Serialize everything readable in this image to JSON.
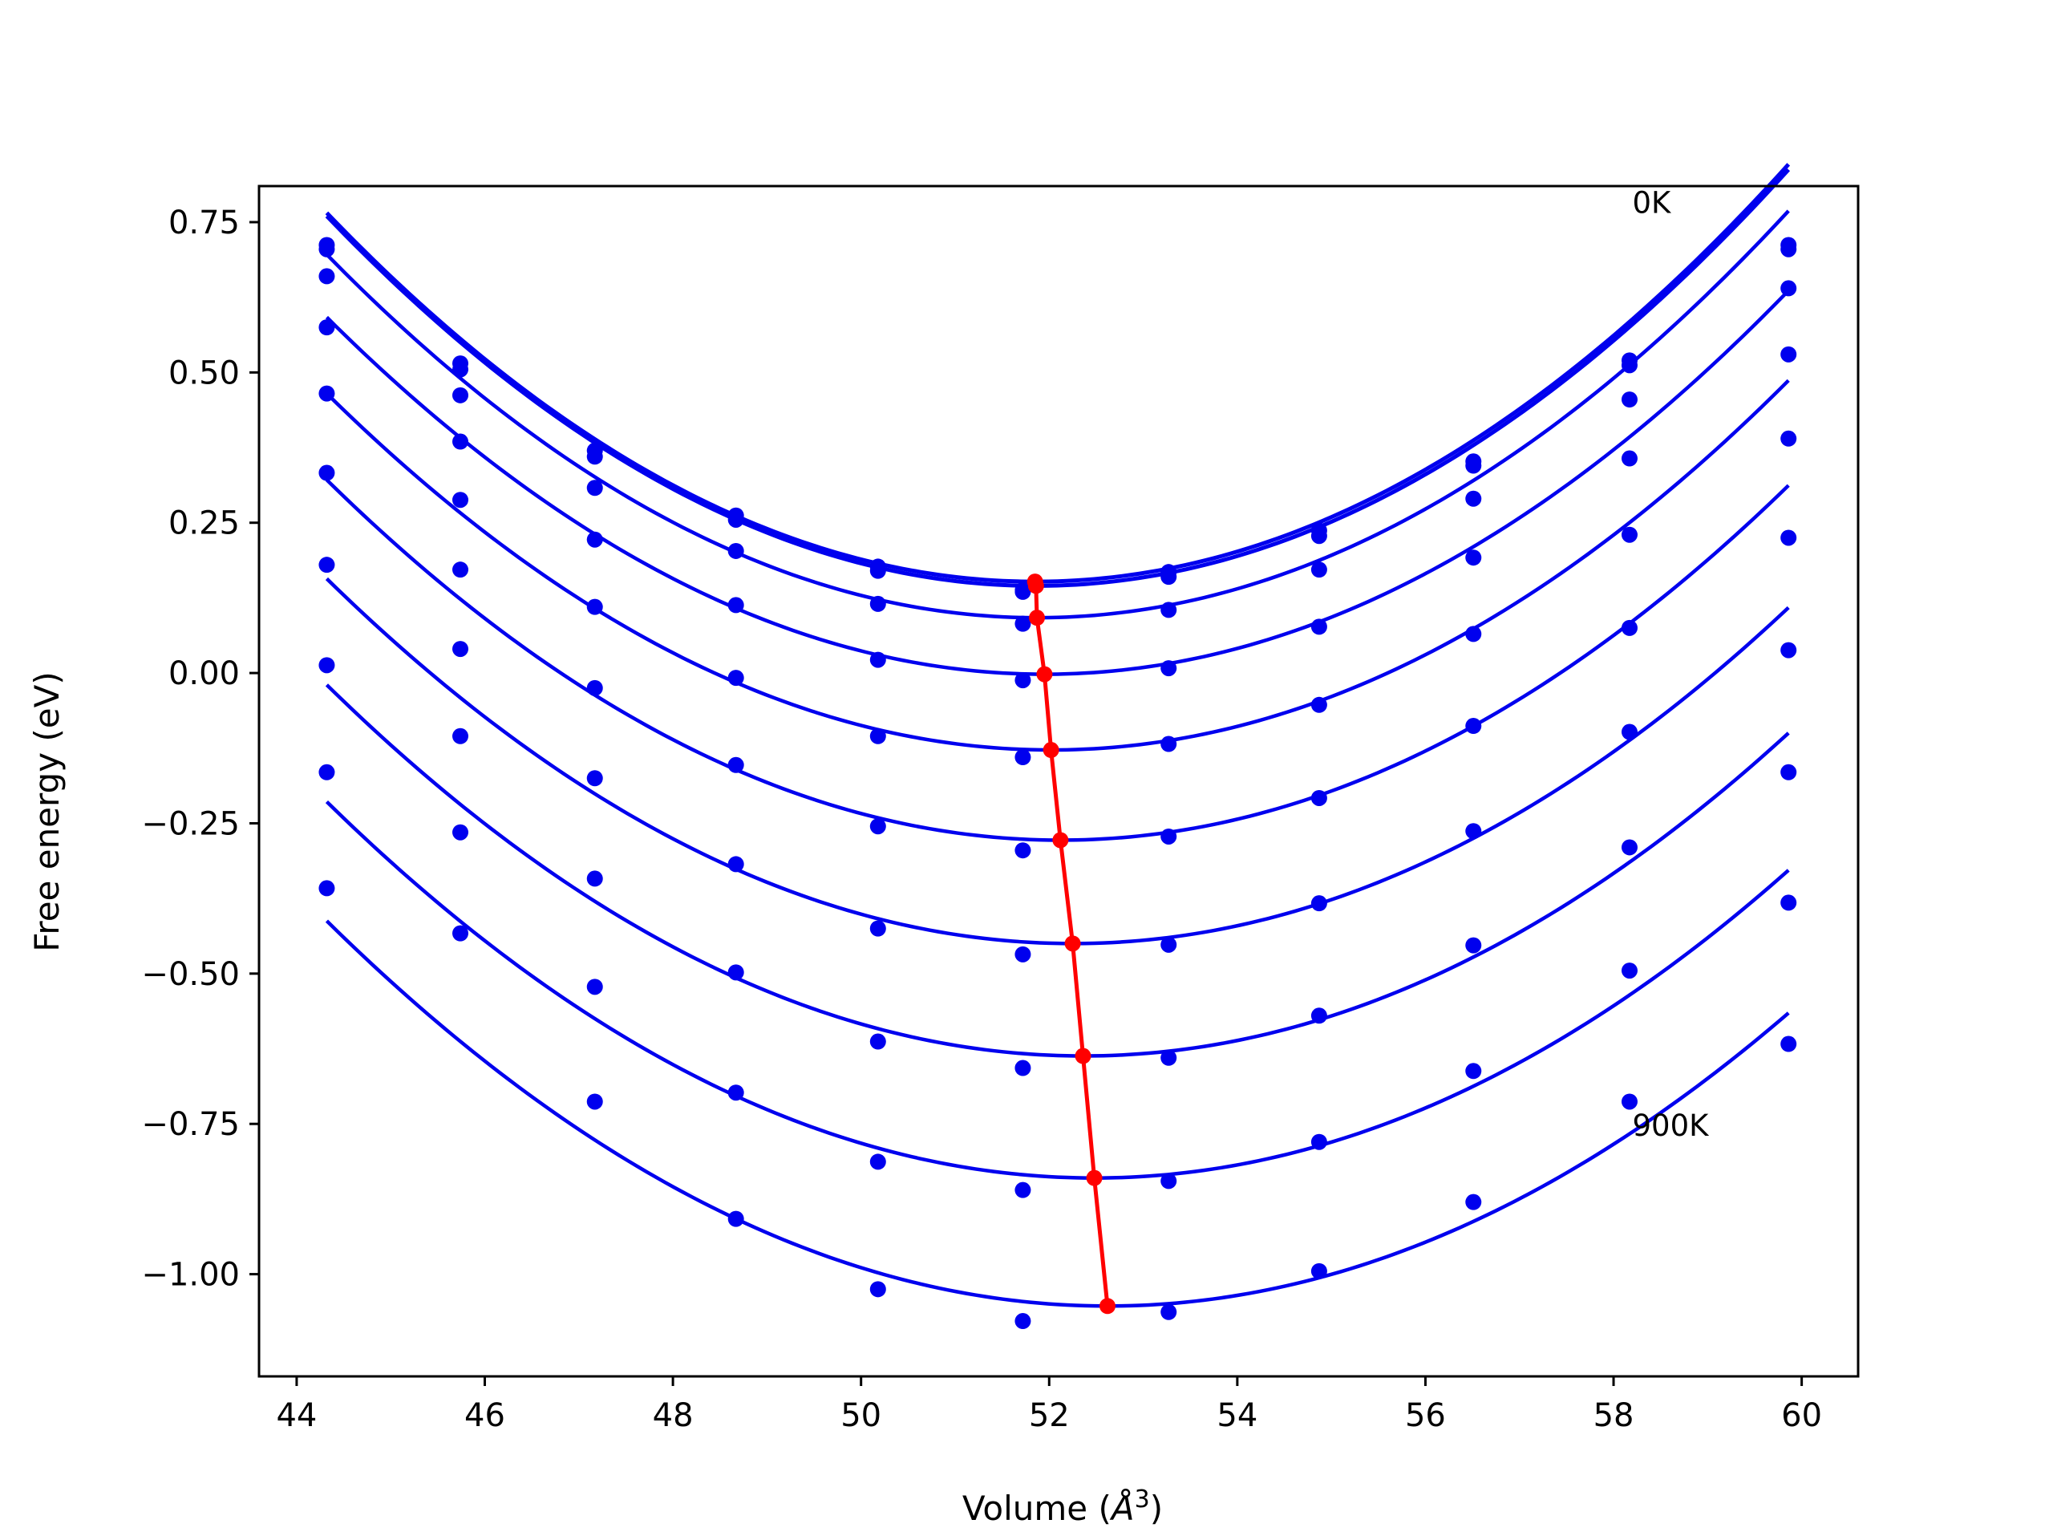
{
  "chart_data": {
    "type": "scatter",
    "title": "",
    "xlabel": "Volume (Å³)",
    "xlabel_parts": {
      "text": "Volume (",
      "symbol": "Å",
      "sup": "3",
      "close": ")"
    },
    "ylabel": "Free energy (eV)",
    "xlim": [
      43.6,
      60.6
    ],
    "ylim": [
      -1.17,
      0.81
    ],
    "grid": false,
    "legend": "none",
    "x_ticks": [
      44,
      46,
      48,
      50,
      52,
      54,
      56,
      58,
      60
    ],
    "x_tick_labels": [
      "44",
      "46",
      "48",
      "50",
      "52",
      "54",
      "56",
      "58",
      "60"
    ],
    "y_ticks": [
      0.75,
      0.5,
      0.25,
      0.0,
      -0.25,
      -0.5,
      -0.75,
      -1.0
    ],
    "y_tick_labels": [
      "0.75",
      "0.50",
      "0.25",
      "0.00",
      "−0.25",
      "−0.50",
      "−0.75",
      "−1.00"
    ],
    "annotations": [
      {
        "text": "0K",
        "x": 58.2,
        "y": 0.765
      },
      {
        "text": "900K",
        "x": 58.2,
        "y": -0.77
      }
    ],
    "volumes": [
      44.32,
      45.74,
      47.17,
      48.67,
      50.18,
      51.72,
      53.27,
      54.87,
      56.51,
      58.17,
      59.86
    ],
    "fit_range": [
      44.32,
      59.86
    ],
    "series": [
      {
        "temperature_K": 0,
        "color": "#0000ee",
        "fit_line_width": 5,
        "points": [
          0.712,
          0.515,
          0.37,
          0.262,
          0.177,
          0.138,
          0.168,
          0.237,
          0.352,
          0.52,
          0.712
        ],
        "fit": {
          "a": 0.01082,
          "v0": 51.85,
          "e0": 0.152
        }
      },
      {
        "temperature_K": 100,
        "color": "#0000ee",
        "fit_line_width": 5,
        "points": [
          0.705,
          0.505,
          0.36,
          0.255,
          0.17,
          0.135,
          0.16,
          0.228,
          0.345,
          0.512,
          0.705
        ],
        "fit": {
          "a": 0.01082,
          "v0": 51.86,
          "e0": 0.145
        }
      },
      {
        "temperature_K": 200,
        "color": "#0000ee",
        "fit_line_width": 4.5,
        "points": [
          0.66,
          0.462,
          0.308,
          0.203,
          0.115,
          0.082,
          0.105,
          0.172,
          0.29,
          0.455,
          0.64
        ],
        "fit": {
          "a": 0.0106,
          "v0": 51.87,
          "e0": 0.092
        }
      },
      {
        "temperature_K": 300,
        "color": "#0000ee",
        "fit_line_width": 4.5,
        "points": [
          0.575,
          0.385,
          0.222,
          0.113,
          0.022,
          -0.012,
          0.008,
          0.077,
          0.192,
          0.357,
          0.53
        ],
        "fit": {
          "a": 0.0102,
          "v0": 51.95,
          "e0": -0.002
        }
      },
      {
        "temperature_K": 400,
        "color": "#0000ee",
        "fit_line_width": 4.5,
        "points": [
          0.465,
          0.288,
          0.11,
          -0.008,
          -0.105,
          -0.14,
          -0.118,
          -0.053,
          0.065,
          0.23,
          0.39
        ],
        "fit": {
          "a": 0.01,
          "v0": 52.02,
          "e0": -0.128
        }
      },
      {
        "temperature_K": 500,
        "color": "#0000ee",
        "fit_line_width": 4.5,
        "points": [
          0.333,
          0.172,
          -0.025,
          -0.153,
          -0.255,
          -0.295,
          -0.272,
          -0.208,
          -0.088,
          0.075,
          0.225
        ],
        "fit": {
          "a": 0.00985,
          "v0": 52.12,
          "e0": -0.278
        }
      },
      {
        "temperature_K": 600,
        "color": "#0000ee",
        "fit_line_width": 4.5,
        "points": [
          0.18,
          0.04,
          -0.175,
          -0.318,
          -0.425,
          -0.468,
          -0.452,
          -0.383,
          -0.263,
          -0.098,
          0.038
        ],
        "fit": {
          "a": 0.00965,
          "v0": 52.25,
          "e0": -0.45
        }
      },
      {
        "temperature_K": 700,
        "color": "#0000ee",
        "fit_line_width": 4.5,
        "points": [
          0.013,
          -0.105,
          -0.342,
          -0.498,
          -0.613,
          -0.657,
          -0.64,
          -0.57,
          -0.453,
          -0.29,
          -0.165
        ],
        "fit": {
          "a": 0.00955,
          "v0": 52.36,
          "e0": -0.637
        }
      },
      {
        "temperature_K": 800,
        "color": "#0000ee",
        "fit_line_width": 4.5,
        "points": [
          -0.165,
          -0.265,
          -0.522,
          -0.698,
          -0.813,
          -0.86,
          -0.845,
          -0.78,
          -0.662,
          -0.495,
          -0.382
        ],
        "fit": {
          "a": 0.0094,
          "v0": 52.48,
          "e0": -0.84
        }
      },
      {
        "temperature_K": 900,
        "color": "#0000ee",
        "fit_line_width": 4.5,
        "points": [
          -0.358,
          -0.433,
          -0.713,
          -0.908,
          -1.025,
          -1.078,
          -1.063,
          -0.995,
          -0.88,
          -0.713,
          -0.617
        ],
        "fit": {
          "a": 0.0093,
          "v0": 52.62,
          "e0": -1.053
        }
      }
    ],
    "minima_line": {
      "color": "#ff0000",
      "points": [
        [
          51.85,
          0.152
        ],
        [
          51.86,
          0.145
        ],
        [
          51.87,
          0.092
        ],
        [
          51.95,
          -0.002
        ],
        [
          52.02,
          -0.128
        ],
        [
          52.12,
          -0.278
        ],
        [
          52.25,
          -0.45
        ],
        [
          52.36,
          -0.637
        ],
        [
          52.48,
          -0.84
        ],
        [
          52.62,
          -1.053
        ]
      ]
    }
  }
}
